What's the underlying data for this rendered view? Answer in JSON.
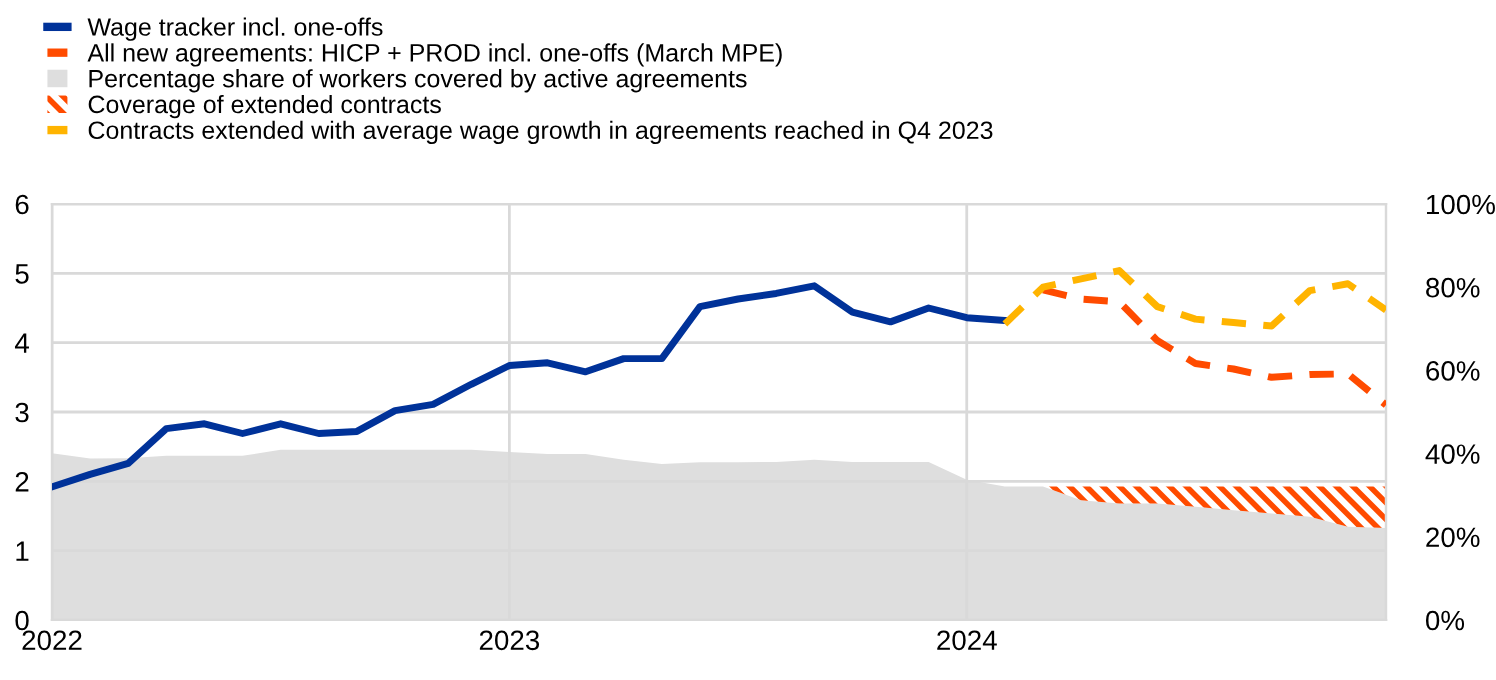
{
  "chart_data": {
    "type": "line",
    "x": [
      "2022-01",
      "2022-02",
      "2022-03",
      "2022-04",
      "2022-05",
      "2022-06",
      "2022-07",
      "2022-08",
      "2022-09",
      "2022-10",
      "2022-11",
      "2022-12",
      "2023-01",
      "2023-02",
      "2023-03",
      "2023-04",
      "2023-05",
      "2023-06",
      "2023-07",
      "2023-08",
      "2023-09",
      "2023-10",
      "2023-11",
      "2023-12",
      "2024-01",
      "2024-02",
      "2024-03",
      "2024-04",
      "2024-05",
      "2024-06",
      "2024-07",
      "2024-08",
      "2024-09",
      "2024-10",
      "2024-11",
      "2024-12"
    ],
    "series": [
      {
        "name": "Percentage share of workers covered by active agreements",
        "type": "area",
        "axis": "y2",
        "color": "#dedede",
        "values": [
          40.1,
          38.8,
          38.9,
          39.5,
          39.5,
          39.5,
          40.9,
          40.9,
          40.9,
          40.9,
          40.9,
          40.9,
          40.4,
          39.9,
          39.9,
          38.5,
          37.5,
          37.9,
          37.9,
          38.0,
          38.5,
          38.0,
          38.0,
          38.0,
          33.7,
          32.1,
          32.1,
          28.8,
          28.0,
          28.0,
          27.2,
          26.4,
          25.6,
          24.8,
          22.4,
          22.1
        ]
      },
      {
        "name": "Coverage of extended contracts",
        "type": "area",
        "axis": "y2",
        "color": "#ff4b00",
        "values": [
          null,
          null,
          null,
          null,
          null,
          null,
          null,
          null,
          null,
          null,
          null,
          null,
          null,
          null,
          null,
          null,
          null,
          null,
          null,
          null,
          null,
          null,
          null,
          null,
          null,
          null,
          0,
          3.3,
          4.1,
          4.1,
          4.9,
          5.7,
          6.5,
          7.3,
          9.7,
          10.0
        ]
      },
      {
        "name": "Wage tracker incl. one-offs",
        "color": "#003299",
        "line_style": "solid",
        "values": [
          1.92,
          2.1,
          2.26,
          2.76,
          2.83,
          2.69,
          2.83,
          2.69,
          2.72,
          3.02,
          3.11,
          3.4,
          3.67,
          3.71,
          3.58,
          3.77,
          3.77,
          4.52,
          4.63,
          4.71,
          4.82,
          4.44,
          4.3,
          4.5,
          4.36,
          4.32,
          null,
          null,
          null,
          null,
          null,
          null,
          null,
          null,
          null,
          null
        ]
      },
      {
        "name": "All new agreements: HICP + PROD incl. one-offs (March MPE)",
        "color": "#ff4b00",
        "line_style": "dashed",
        "values": [
          null,
          null,
          null,
          null,
          null,
          null,
          null,
          null,
          null,
          null,
          null,
          null,
          null,
          null,
          null,
          null,
          null,
          null,
          null,
          null,
          null,
          null,
          null,
          null,
          null,
          null,
          4.76,
          4.63,
          4.59,
          4.03,
          3.7,
          3.62,
          3.5,
          3.54,
          3.55,
          3.1
        ]
      },
      {
        "name": "Contracts extended with average wage growth in agreements reached in Q4 2023",
        "color": "#ffb400",
        "line_style": "dashed",
        "values": [
          null,
          null,
          null,
          null,
          null,
          null,
          null,
          null,
          null,
          null,
          null,
          null,
          null,
          null,
          null,
          null,
          null,
          null,
          null,
          null,
          null,
          null,
          null,
          null,
          null,
          4.27,
          4.8,
          4.92,
          5.04,
          4.52,
          4.34,
          4.29,
          4.24,
          4.75,
          4.85,
          4.47
        ]
      }
    ],
    "stacked": true,
    "xlim": [
      "2022-01",
      "2024-12"
    ],
    "xticks": [
      {
        "value": "2022-01",
        "label": "2022"
      },
      {
        "value": "2023-01",
        "label": "2023"
      },
      {
        "value": "2024-01",
        "label": "2024"
      }
    ],
    "ylim": [
      0,
      6
    ],
    "yticks": [
      0,
      1,
      2,
      3,
      4,
      5,
      6
    ],
    "y2lim": [
      0,
      100
    ],
    "y2ticks": [
      {
        "value": 0,
        "label": "0%"
      },
      {
        "value": 20,
        "label": "20%"
      },
      {
        "value": 40,
        "label": "40%"
      },
      {
        "value": 60,
        "label": "60%"
      },
      {
        "value": 80,
        "label": "80%"
      },
      {
        "value": 100,
        "label": "100%"
      }
    ],
    "grid": true,
    "legend": "top left"
  }
}
